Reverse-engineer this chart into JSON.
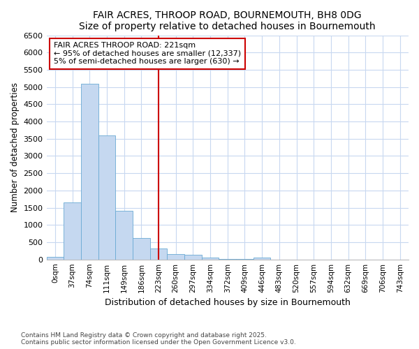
{
  "title": "FAIR ACRES, THROOP ROAD, BOURNEMOUTH, BH8 0DG",
  "subtitle": "Size of property relative to detached houses in Bournemouth",
  "xlabel": "Distribution of detached houses by size in Bournemouth",
  "ylabel": "Number of detached properties",
  "bar_labels": [
    "0sqm",
    "37sqm",
    "74sqm",
    "111sqm",
    "149sqm",
    "186sqm",
    "223sqm",
    "260sqm",
    "297sqm",
    "334sqm",
    "372sqm",
    "409sqm",
    "446sqm",
    "483sqm",
    "520sqm",
    "557sqm",
    "594sqm",
    "632sqm",
    "669sqm",
    "706sqm",
    "743sqm"
  ],
  "bar_values": [
    75,
    1650,
    5100,
    3600,
    1420,
    620,
    320,
    160,
    130,
    50,
    20,
    10,
    50,
    3,
    2,
    1,
    1,
    0,
    0,
    0,
    0
  ],
  "bar_color": "#c5d8f0",
  "bar_edgecolor": "#6aaad4",
  "bg_color": "#ffffff",
  "grid_color": "#c8d8f0",
  "vline_color": "#cc0000",
  "vline_x": 6,
  "annotation_text": "FAIR ACRES THROOP ROAD: 221sqm\n← 95% of detached houses are smaller (12,337)\n5% of semi-detached houses are larger (630) →",
  "annotation_box_color": "#cc0000",
  "annotation_box_bg": "#ffffff",
  "footer_line1": "Contains HM Land Registry data © Crown copyright and database right 2025.",
  "footer_line2": "Contains public sector information licensed under the Open Government Licence v3.0.",
  "ylim": [
    0,
    6500
  ],
  "yticks": [
    0,
    500,
    1000,
    1500,
    2000,
    2500,
    3000,
    3500,
    4000,
    4500,
    5000,
    5500,
    6000,
    6500
  ]
}
